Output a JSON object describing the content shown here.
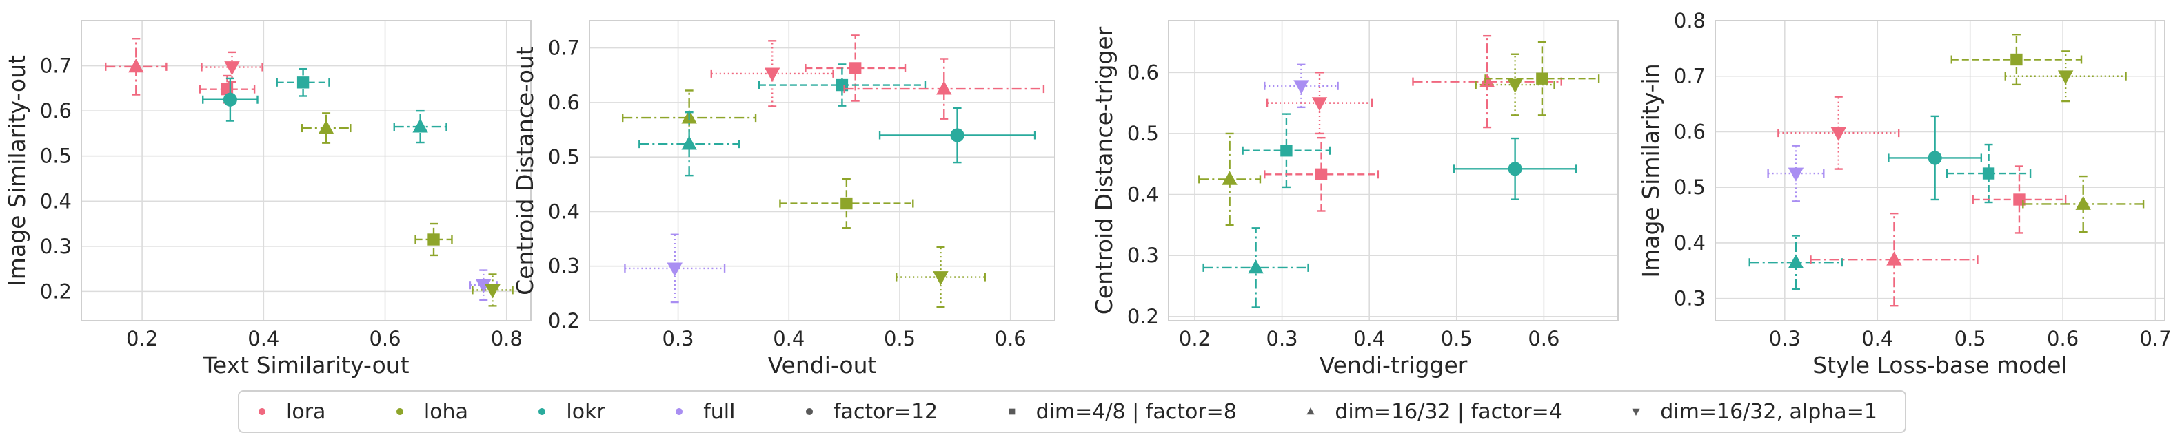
{
  "colors": {
    "lora": "#f0687f",
    "loha": "#8ea52a",
    "lokr": "#2aab9d",
    "full": "#a98ef2",
    "neutral": "#595959"
  },
  "legend": {
    "entries": [
      {
        "label": "lora",
        "kind": "color",
        "key": "lora"
      },
      {
        "label": "loha",
        "kind": "color",
        "key": "loha"
      },
      {
        "label": "lokr",
        "kind": "color",
        "key": "lokr"
      },
      {
        "label": "full",
        "kind": "color",
        "key": "full"
      },
      {
        "label": "factor=12",
        "kind": "marker",
        "marker": "circle"
      },
      {
        "label": "dim=4/8 | factor=8",
        "kind": "marker",
        "marker": "square"
      },
      {
        "label": "dim=16/32 | factor=4",
        "kind": "marker",
        "marker": "triangle-up"
      },
      {
        "label": "dim=16/32, alpha=1",
        "kind": "marker",
        "marker": "triangle-down"
      }
    ],
    "placement": "bottom-center"
  },
  "chart_data": [
    {
      "type": "scatter",
      "xlabel": "Text Similarity-out",
      "ylabel": "Image Similarity-out",
      "xlim": [
        0.1,
        0.84
      ],
      "ylim": [
        0.135,
        0.8
      ],
      "xticks": [
        0.2,
        0.4,
        0.6,
        0.8
      ],
      "yticks": [
        0.2,
        0.3,
        0.4,
        0.5,
        0.6,
        0.7
      ],
      "xticklabels": [
        "0.2",
        "0.4",
        "0.6",
        "0.8"
      ],
      "yticklabels": [
        "0.2",
        "0.3",
        "0.4",
        "0.5",
        "0.6",
        "0.7"
      ],
      "grid": true,
      "points": [
        {
          "series": "lora",
          "marker": "triangle-up",
          "x": 0.19,
          "y": 0.698,
          "xerr": 0.05,
          "yerr": 0.062
        },
        {
          "series": "lora",
          "marker": "triangle-down",
          "x": 0.348,
          "y": 0.697,
          "xerr": 0.05,
          "yerr": 0.033
        },
        {
          "series": "lora",
          "marker": "square",
          "x": 0.34,
          "y": 0.648,
          "xerr": 0.045,
          "yerr": 0.03
        },
        {
          "series": "lokr",
          "marker": "circle",
          "x": 0.345,
          "y": 0.625,
          "xerr": 0.045,
          "yerr": 0.047
        },
        {
          "series": "lokr",
          "marker": "square",
          "x": 0.465,
          "y": 0.663,
          "xerr": 0.043,
          "yerr": 0.03
        },
        {
          "series": "loha",
          "marker": "triangle-up",
          "x": 0.503,
          "y": 0.562,
          "xerr": 0.04,
          "yerr": 0.033
        },
        {
          "series": "lokr",
          "marker": "triangle-up",
          "x": 0.658,
          "y": 0.565,
          "xerr": 0.043,
          "yerr": 0.035
        },
        {
          "series": "loha",
          "marker": "square",
          "x": 0.68,
          "y": 0.315,
          "xerr": 0.03,
          "yerr": 0.035
        },
        {
          "series": "full",
          "marker": "triangle-down",
          "x": 0.762,
          "y": 0.214,
          "xerr": 0.022,
          "yerr": 0.033
        },
        {
          "series": "loha",
          "marker": "triangle-down",
          "x": 0.777,
          "y": 0.203,
          "xerr": 0.033,
          "yerr": 0.035
        }
      ]
    },
    {
      "type": "scatter",
      "xlabel": "Vendi-out",
      "ylabel": "Centroid Distance-out",
      "xlim": [
        0.22,
        0.64
      ],
      "ylim": [
        0.2,
        0.75
      ],
      "xticks": [
        0.3,
        0.4,
        0.5,
        0.6
      ],
      "yticks": [
        0.2,
        0.3,
        0.4,
        0.5,
        0.6,
        0.7
      ],
      "xticklabels": [
        "0.3",
        "0.4",
        "0.5",
        "0.6"
      ],
      "yticklabels": [
        "0.2",
        "0.3",
        "0.4",
        "0.5",
        "0.6",
        "0.7"
      ],
      "grid": true,
      "points": [
        {
          "series": "lora",
          "marker": "triangle-down",
          "x": 0.385,
          "y": 0.653,
          "xerr": 0.055,
          "yerr": 0.06
        },
        {
          "series": "lora",
          "marker": "square",
          "x": 0.46,
          "y": 0.663,
          "xerr": 0.045,
          "yerr": 0.06
        },
        {
          "series": "lokr",
          "marker": "square",
          "x": 0.448,
          "y": 0.632,
          "xerr": 0.075,
          "yerr": 0.038
        },
        {
          "series": "lora",
          "marker": "triangle-up",
          "x": 0.54,
          "y": 0.625,
          "xerr": 0.09,
          "yerr": 0.055
        },
        {
          "series": "loha",
          "marker": "triangle-up",
          "x": 0.31,
          "y": 0.572,
          "xerr": 0.06,
          "yerr": 0.05
        },
        {
          "series": "lokr",
          "marker": "triangle-up",
          "x": 0.31,
          "y": 0.524,
          "xerr": 0.045,
          "yerr": 0.058
        },
        {
          "series": "lokr",
          "marker": "circle",
          "x": 0.552,
          "y": 0.54,
          "xerr": 0.07,
          "yerr": 0.05
        },
        {
          "series": "loha",
          "marker": "square",
          "x": 0.452,
          "y": 0.415,
          "xerr": 0.06,
          "yerr": 0.045
        },
        {
          "series": "full",
          "marker": "triangle-down",
          "x": 0.297,
          "y": 0.296,
          "xerr": 0.045,
          "yerr": 0.062
        },
        {
          "series": "loha",
          "marker": "triangle-down",
          "x": 0.537,
          "y": 0.28,
          "xerr": 0.04,
          "yerr": 0.055
        }
      ]
    },
    {
      "type": "scatter",
      "xlabel": "Vendi-trigger",
      "ylabel": "Centroid Distance-trigger",
      "xlim": [
        0.17,
        0.685
      ],
      "ylim": [
        0.193,
        0.685
      ],
      "xticks": [
        0.2,
        0.3,
        0.4,
        0.5,
        0.6
      ],
      "yticks": [
        0.2,
        0.3,
        0.4,
        0.5,
        0.6
      ],
      "xticklabels": [
        "0.2",
        "0.3",
        "0.4",
        "0.5",
        "0.6"
      ],
      "yticklabels": [
        "0.2",
        "0.3",
        "0.4",
        "0.5",
        "0.6"
      ],
      "grid": true,
      "points": [
        {
          "series": "full",
          "marker": "triangle-down",
          "x": 0.322,
          "y": 0.578,
          "xerr": 0.042,
          "yerr": 0.035
        },
        {
          "series": "lora",
          "marker": "triangle-down",
          "x": 0.343,
          "y": 0.55,
          "xerr": 0.06,
          "yerr": 0.05
        },
        {
          "series": "lora",
          "marker": "triangle-up",
          "x": 0.535,
          "y": 0.585,
          "xerr": 0.085,
          "yerr": 0.075
        },
        {
          "series": "loha",
          "marker": "triangle-down",
          "x": 0.567,
          "y": 0.58,
          "xerr": 0.045,
          "yerr": 0.05
        },
        {
          "series": "loha",
          "marker": "square",
          "x": 0.598,
          "y": 0.59,
          "xerr": 0.065,
          "yerr": 0.06
        },
        {
          "series": "lokr",
          "marker": "square",
          "x": 0.305,
          "y": 0.472,
          "xerr": 0.05,
          "yerr": 0.06
        },
        {
          "series": "lora",
          "marker": "square",
          "x": 0.345,
          "y": 0.433,
          "xerr": 0.065,
          "yerr": 0.06
        },
        {
          "series": "lokr",
          "marker": "circle",
          "x": 0.567,
          "y": 0.442,
          "xerr": 0.07,
          "yerr": 0.05
        },
        {
          "series": "loha",
          "marker": "triangle-up",
          "x": 0.24,
          "y": 0.425,
          "xerr": 0.035,
          "yerr": 0.075
        },
        {
          "series": "lokr",
          "marker": "triangle-up",
          "x": 0.27,
          "y": 0.28,
          "xerr": 0.06,
          "yerr": 0.065
        }
      ]
    },
    {
      "type": "scatter",
      "xlabel": "Style Loss-base model",
      "ylabel": "Image Similarity-in",
      "xlim": [
        0.225,
        0.71
      ],
      "ylim": [
        0.26,
        0.8
      ],
      "xticks": [
        0.3,
        0.4,
        0.5,
        0.6,
        0.7
      ],
      "yticks": [
        0.3,
        0.4,
        0.5,
        0.6,
        0.7,
        0.8
      ],
      "xticklabels": [
        "0.3",
        "0.4",
        "0.5",
        "0.6",
        "0.7"
      ],
      "yticklabels": [
        "0.3",
        "0.4",
        "0.5",
        "0.6",
        "0.7",
        "0.8"
      ],
      "grid": true,
      "points": [
        {
          "series": "loha",
          "marker": "square",
          "x": 0.55,
          "y": 0.73,
          "xerr": 0.07,
          "yerr": 0.045
        },
        {
          "series": "loha",
          "marker": "triangle-down",
          "x": 0.603,
          "y": 0.7,
          "xerr": 0.065,
          "yerr": 0.045
        },
        {
          "series": "lora",
          "marker": "triangle-down",
          "x": 0.358,
          "y": 0.598,
          "xerr": 0.065,
          "yerr": 0.065
        },
        {
          "series": "full",
          "marker": "triangle-down",
          "x": 0.312,
          "y": 0.525,
          "xerr": 0.03,
          "yerr": 0.05
        },
        {
          "series": "lokr",
          "marker": "circle",
          "x": 0.462,
          "y": 0.553,
          "xerr": 0.05,
          "yerr": 0.075
        },
        {
          "series": "lokr",
          "marker": "square",
          "x": 0.52,
          "y": 0.525,
          "xerr": 0.045,
          "yerr": 0.052
        },
        {
          "series": "lora",
          "marker": "square",
          "x": 0.553,
          "y": 0.478,
          "xerr": 0.05,
          "yerr": 0.06
        },
        {
          "series": "loha",
          "marker": "triangle-up",
          "x": 0.622,
          "y": 0.47,
          "xerr": 0.065,
          "yerr": 0.05
        },
        {
          "series": "lokr",
          "marker": "triangle-up",
          "x": 0.312,
          "y": 0.365,
          "xerr": 0.05,
          "yerr": 0.048
        },
        {
          "series": "lora",
          "marker": "triangle-up",
          "x": 0.418,
          "y": 0.37,
          "xerr": 0.09,
          "yerr": 0.083
        }
      ]
    }
  ]
}
